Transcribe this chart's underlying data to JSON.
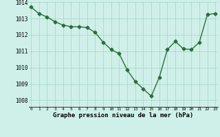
{
  "x": [
    0,
    1,
    2,
    3,
    4,
    5,
    6,
    7,
    8,
    9,
    10,
    11,
    12,
    13,
    14,
    15,
    16,
    17,
    18,
    19,
    20,
    21,
    22,
    23
  ],
  "y": [
    1013.7,
    1013.3,
    1013.1,
    1012.8,
    1012.6,
    1012.5,
    1012.5,
    1012.45,
    1012.15,
    1011.55,
    1011.1,
    1010.85,
    1009.85,
    1009.15,
    1008.7,
    1008.25,
    1009.4,
    1011.1,
    1011.6,
    1011.15,
    1011.1,
    1011.55,
    1013.25,
    1013.3
  ],
  "line_color": "#2d6b3c",
  "marker": "D",
  "markersize": 2.5,
  "linewidth": 1.0,
  "bg_color": "#cff0e8",
  "grid_color": "#a8d8cc",
  "xlabel": "Graphe pression niveau de la mer (hPa)",
  "xlabel_fontsize": 6.5,
  "ytick_labels": [
    "1008",
    "1009",
    "1010",
    "1011",
    "1012",
    "1013",
    "1014"
  ],
  "yticks": [
    1008,
    1009,
    1010,
    1011,
    1012,
    1013,
    1014
  ],
  "xticks": [
    0,
    1,
    2,
    3,
    4,
    5,
    6,
    7,
    8,
    9,
    10,
    11,
    12,
    13,
    14,
    15,
    16,
    17,
    18,
    19,
    20,
    21,
    22,
    23
  ],
  "ylim": [
    1007.6,
    1014.05
  ],
  "xlim": [
    -0.3,
    23.3
  ]
}
